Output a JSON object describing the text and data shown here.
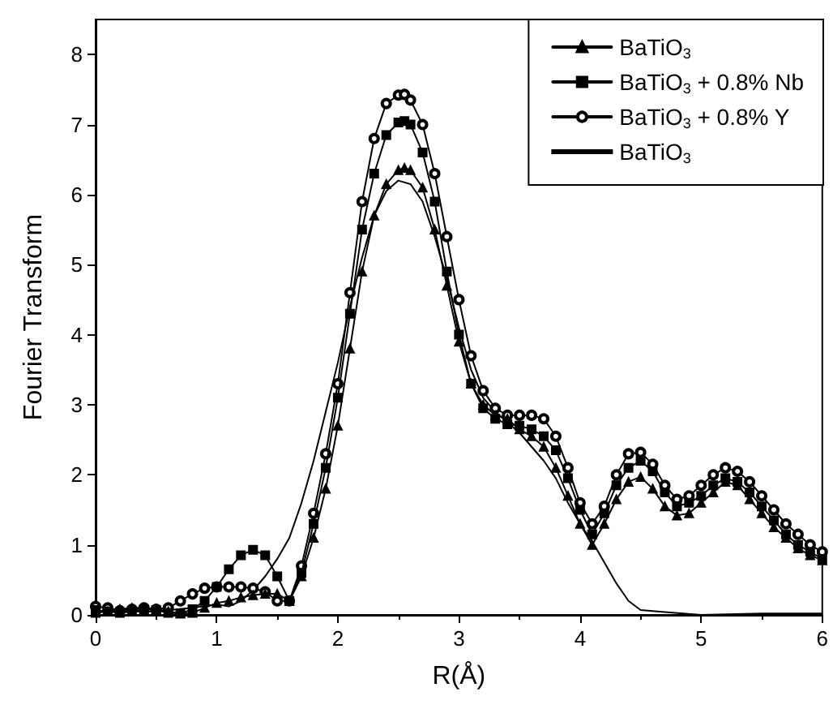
{
  "chart_data": {
    "type": "line",
    "xlabel": "R(Å)",
    "ylabel": "Fourier Transform",
    "xlim": [
      0,
      6
    ],
    "ylim": [
      0,
      8.5
    ],
    "xticks": [
      0,
      1,
      2,
      3,
      4,
      5,
      6
    ],
    "yticks": [
      0,
      1,
      2,
      3,
      4,
      5,
      6,
      7,
      8
    ],
    "grid": false,
    "legend": "top right",
    "series": [
      {
        "name": "BaTiO$_{3}$",
        "color": "#000000",
        "marker": "triangle",
        "x": [
          0,
          0.1,
          0.2,
          0.3,
          0.4,
          0.5,
          0.6,
          0.7,
          0.8,
          0.9,
          1.0,
          1.1,
          1.2,
          1.3,
          1.4,
          1.5,
          1.6,
          1.7,
          1.8,
          1.9,
          2.0,
          2.1,
          2.2,
          2.3,
          2.4,
          2.5,
          2.55,
          2.6,
          2.7,
          2.8,
          2.9,
          3.0,
          3.1,
          3.2,
          3.3,
          3.4,
          3.5,
          3.6,
          3.7,
          3.8,
          3.9,
          4.0,
          4.1,
          4.2,
          4.3,
          4.4,
          4.5,
          4.6,
          4.7,
          4.8,
          4.9,
          5.0,
          5.1,
          5.2,
          5.3,
          5.4,
          5.5,
          5.6,
          5.7,
          5.8,
          5.9,
          6.0
        ],
        "values": [
          0.03,
          0.05,
          0.08,
          0.1,
          0.1,
          0.08,
          0.05,
          0.02,
          0.03,
          0.1,
          0.17,
          0.2,
          0.25,
          0.28,
          0.3,
          0.3,
          0.2,
          0.55,
          1.1,
          1.8,
          2.7,
          3.8,
          4.9,
          5.7,
          6.15,
          6.35,
          6.38,
          6.35,
          6.1,
          5.5,
          4.7,
          3.9,
          3.3,
          3.0,
          2.85,
          2.8,
          2.65,
          2.55,
          2.4,
          2.1,
          1.7,
          1.3,
          1.0,
          1.3,
          1.65,
          1.9,
          1.97,
          1.8,
          1.55,
          1.42,
          1.45,
          1.6,
          1.75,
          1.9,
          1.85,
          1.65,
          1.45,
          1.25,
          1.1,
          0.95,
          0.85,
          0.78
        ]
      },
      {
        "name": "BaTiO$_{3}$ + 0.8% Nb",
        "color": "#000000",
        "marker": "square",
        "x": [
          0,
          0.1,
          0.2,
          0.3,
          0.4,
          0.5,
          0.6,
          0.7,
          0.8,
          0.9,
          1.0,
          1.1,
          1.2,
          1.3,
          1.4,
          1.5,
          1.6,
          1.7,
          1.8,
          1.9,
          2.0,
          2.1,
          2.2,
          2.3,
          2.4,
          2.5,
          2.55,
          2.6,
          2.7,
          2.8,
          2.9,
          3.0,
          3.1,
          3.2,
          3.3,
          3.4,
          3.5,
          3.6,
          3.7,
          3.8,
          3.9,
          4.0,
          4.1,
          4.2,
          4.3,
          4.4,
          4.5,
          4.6,
          4.7,
          4.8,
          4.9,
          5.0,
          5.1,
          5.2,
          5.3,
          5.4,
          5.5,
          5.6,
          5.7,
          5.8,
          5.9,
          6.0
        ],
        "values": [
          0.07,
          0.05,
          0.03,
          0.05,
          0.08,
          0.07,
          0.03,
          0.02,
          0.08,
          0.2,
          0.4,
          0.65,
          0.85,
          0.93,
          0.85,
          0.55,
          0.2,
          0.6,
          1.3,
          2.1,
          3.1,
          4.3,
          5.5,
          6.3,
          6.85,
          7.03,
          7.05,
          7.0,
          6.6,
          5.9,
          4.9,
          4.0,
          3.3,
          2.95,
          2.8,
          2.72,
          2.7,
          2.65,
          2.55,
          2.35,
          1.95,
          1.5,
          1.15,
          1.45,
          1.85,
          2.1,
          2.2,
          2.05,
          1.75,
          1.55,
          1.6,
          1.7,
          1.85,
          1.95,
          1.9,
          1.75,
          1.55,
          1.35,
          1.15,
          1.0,
          0.9,
          0.8
        ]
      },
      {
        "name": "BaTiO$_{3}$ + 0.8% Y",
        "color": "#000000",
        "marker": "circle",
        "x": [
          0,
          0.1,
          0.2,
          0.3,
          0.4,
          0.5,
          0.6,
          0.7,
          0.8,
          0.9,
          1.0,
          1.1,
          1.2,
          1.3,
          1.4,
          1.5,
          1.6,
          1.7,
          1.8,
          1.9,
          2.0,
          2.1,
          2.2,
          2.3,
          2.4,
          2.5,
          2.55,
          2.6,
          2.7,
          2.8,
          2.9,
          3.0,
          3.1,
          3.2,
          3.3,
          3.4,
          3.5,
          3.6,
          3.7,
          3.8,
          3.9,
          4.0,
          4.1,
          4.2,
          4.3,
          4.4,
          4.5,
          4.6,
          4.7,
          4.8,
          4.9,
          5.0,
          5.1,
          5.2,
          5.3,
          5.4,
          5.5,
          5.6,
          5.7,
          5.8,
          5.9,
          6.0
        ],
        "values": [
          0.12,
          0.1,
          0.06,
          0.08,
          0.1,
          0.08,
          0.1,
          0.2,
          0.3,
          0.38,
          0.4,
          0.4,
          0.4,
          0.38,
          0.33,
          0.2,
          0.2,
          0.7,
          1.45,
          2.3,
          3.3,
          4.6,
          5.9,
          6.8,
          7.3,
          7.42,
          7.43,
          7.35,
          7.0,
          6.3,
          5.4,
          4.5,
          3.7,
          3.2,
          2.95,
          2.85,
          2.85,
          2.85,
          2.8,
          2.55,
          2.1,
          1.6,
          1.3,
          1.55,
          2.0,
          2.3,
          2.32,
          2.15,
          1.85,
          1.65,
          1.7,
          1.85,
          2.0,
          2.1,
          2.05,
          1.9,
          1.7,
          1.5,
          1.3,
          1.15,
          1.0,
          0.9
        ]
      },
      {
        "name": "BaTiO$_{3}$",
        "color": "#000000",
        "marker": "none",
        "x": [
          0,
          0.5,
          0.8,
          1.0,
          1.1,
          1.2,
          1.3,
          1.4,
          1.5,
          1.6,
          1.7,
          1.8,
          1.9,
          2.0,
          2.1,
          2.2,
          2.3,
          2.4,
          2.5,
          2.6,
          2.7,
          2.8,
          2.9,
          3.0,
          3.1,
          3.2,
          3.3,
          3.4,
          3.5,
          3.6,
          3.7,
          3.8,
          3.9,
          4.0,
          4.1,
          4.2,
          4.3,
          4.4,
          4.5,
          4.7,
          5.0,
          5.5,
          6.0
        ],
        "values": [
          0.05,
          0.05,
          0.1,
          0.15,
          0.12,
          0.2,
          0.35,
          0.55,
          0.8,
          1.1,
          1.6,
          2.2,
          2.9,
          3.6,
          4.4,
          5.1,
          5.7,
          6.05,
          6.2,
          6.15,
          5.9,
          5.4,
          4.8,
          4.1,
          3.5,
          3.1,
          2.9,
          2.75,
          2.6,
          2.4,
          2.2,
          1.95,
          1.6,
          1.3,
          1.05,
          0.75,
          0.45,
          0.2,
          0.07,
          0.04,
          0.0,
          0.02,
          0.02
        ]
      }
    ]
  }
}
